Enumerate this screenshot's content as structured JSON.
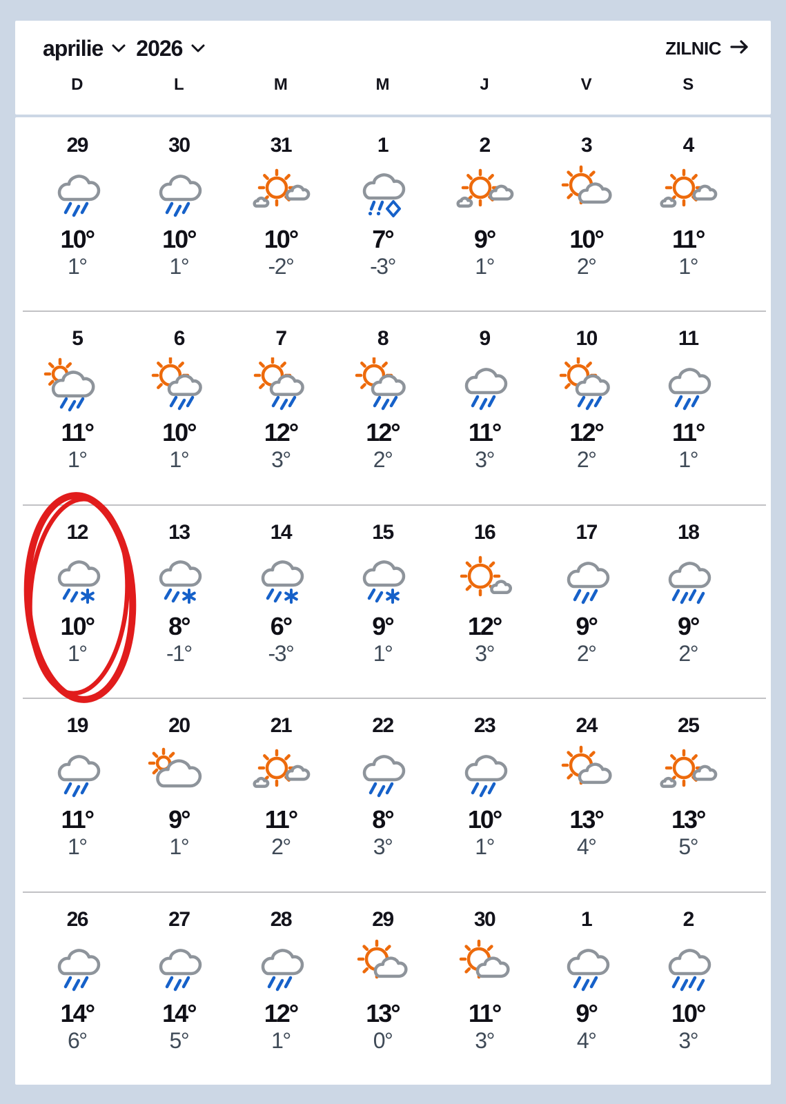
{
  "header": {
    "month_label": "aprilie",
    "year_label": "2026",
    "daily_label": "ZILNIC",
    "month_chevron_icon": "chevron-down",
    "year_chevron_icon": "chevron-down",
    "daily_arrow_icon": "arrow-right"
  },
  "weekday_headers": [
    "D",
    "L",
    "M",
    "M",
    "J",
    "V",
    "S"
  ],
  "colors": {
    "page_background": "#ccd7e5",
    "card_background": "#ffffff",
    "sun": "#ed6a0b",
    "cloud": "#8e949b",
    "rain": "#1661c9",
    "day_number": "#13131b",
    "high_temp": "#0f0f16",
    "low_temp": "#3f4a57",
    "separator": "#c1c1c4",
    "annotation": "#e11c1c"
  },
  "weeks": [
    {
      "days": [
        {
          "date": "29",
          "icon": "rain",
          "high": "10°",
          "low": "1°",
          "outside_month": true,
          "circled": false
        },
        {
          "date": "30",
          "icon": "rain",
          "high": "10°",
          "low": "1°",
          "outside_month": true,
          "circled": false
        },
        {
          "date": "31",
          "icon": "partly-sunny",
          "high": "10°",
          "low": "-2°",
          "outside_month": true,
          "circled": false
        },
        {
          "date": "1",
          "icon": "ice-rain",
          "high": "7°",
          "low": "-3°",
          "outside_month": false,
          "circled": false
        },
        {
          "date": "2",
          "icon": "partly-sunny",
          "high": "9°",
          "low": "1°",
          "outside_month": false,
          "circled": false
        },
        {
          "date": "3",
          "icon": "sun-cloud",
          "high": "10°",
          "low": "2°",
          "outside_month": false,
          "circled": false
        },
        {
          "date": "4",
          "icon": "partly-sunny",
          "high": "11°",
          "low": "1°",
          "outside_month": false,
          "circled": false
        }
      ]
    },
    {
      "days": [
        {
          "date": "5",
          "icon": "cloud-sun-rain",
          "high": "11°",
          "low": "1°",
          "outside_month": false,
          "circled": false
        },
        {
          "date": "6",
          "icon": "sun-cloud-rain",
          "high": "10°",
          "low": "1°",
          "outside_month": false,
          "circled": false
        },
        {
          "date": "7",
          "icon": "sun-cloud-rain",
          "high": "12°",
          "low": "3°",
          "outside_month": false,
          "circled": false
        },
        {
          "date": "8",
          "icon": "sun-cloud-rain",
          "high": "12°",
          "low": "2°",
          "outside_month": false,
          "circled": false
        },
        {
          "date": "9",
          "icon": "rain",
          "high": "11°",
          "low": "3°",
          "outside_month": false,
          "circled": false
        },
        {
          "date": "10",
          "icon": "sun-cloud-rain",
          "high": "12°",
          "low": "2°",
          "outside_month": false,
          "circled": false
        },
        {
          "date": "11",
          "icon": "rain",
          "high": "11°",
          "low": "1°",
          "outside_month": false,
          "circled": false
        }
      ]
    },
    {
      "days": [
        {
          "date": "12",
          "icon": "sleet",
          "high": "10°",
          "low": "1°",
          "outside_month": false,
          "circled": true
        },
        {
          "date": "13",
          "icon": "sleet",
          "high": "8°",
          "low": "-1°",
          "outside_month": false,
          "circled": false
        },
        {
          "date": "14",
          "icon": "sleet",
          "high": "6°",
          "low": "-3°",
          "outside_month": false,
          "circled": false
        },
        {
          "date": "15",
          "icon": "sleet",
          "high": "9°",
          "low": "1°",
          "outside_month": false,
          "circled": false
        },
        {
          "date": "16",
          "icon": "sun-small-cloud",
          "high": "12°",
          "low": "3°",
          "outside_month": false,
          "circled": false
        },
        {
          "date": "17",
          "icon": "rain",
          "high": "9°",
          "low": "2°",
          "outside_month": false,
          "circled": false
        },
        {
          "date": "18",
          "icon": "heavy-rain",
          "high": "9°",
          "low": "2°",
          "outside_month": false,
          "circled": false
        }
      ]
    },
    {
      "days": [
        {
          "date": "19",
          "icon": "rain",
          "high": "11°",
          "low": "1°",
          "outside_month": false,
          "circled": false
        },
        {
          "date": "20",
          "icon": "cloud-sun",
          "high": "9°",
          "low": "1°",
          "outside_month": false,
          "circled": false
        },
        {
          "date": "21",
          "icon": "partly-sunny",
          "high": "11°",
          "low": "2°",
          "outside_month": false,
          "circled": false
        },
        {
          "date": "22",
          "icon": "rain",
          "high": "8°",
          "low": "3°",
          "outside_month": false,
          "circled": false
        },
        {
          "date": "23",
          "icon": "rain",
          "high": "10°",
          "low": "1°",
          "outside_month": false,
          "circled": false
        },
        {
          "date": "24",
          "icon": "sun-cloud",
          "high": "13°",
          "low": "4°",
          "outside_month": false,
          "circled": false
        },
        {
          "date": "25",
          "icon": "partly-sunny",
          "high": "13°",
          "low": "5°",
          "outside_month": false,
          "circled": false
        }
      ]
    },
    {
      "days": [
        {
          "date": "26",
          "icon": "rain",
          "high": "14°",
          "low": "6°",
          "outside_month": false,
          "circled": false
        },
        {
          "date": "27",
          "icon": "rain",
          "high": "14°",
          "low": "5°",
          "outside_month": false,
          "circled": false
        },
        {
          "date": "28",
          "icon": "rain",
          "high": "12°",
          "low": "1°",
          "outside_month": false,
          "circled": false
        },
        {
          "date": "29",
          "icon": "sun-cloud",
          "high": "13°",
          "low": "0°",
          "outside_month": false,
          "circled": false
        },
        {
          "date": "30",
          "icon": "sun-cloud",
          "high": "11°",
          "low": "3°",
          "outside_month": false,
          "circled": false
        },
        {
          "date": "1",
          "icon": "rain",
          "high": "9°",
          "low": "4°",
          "outside_month": true,
          "circled": false
        },
        {
          "date": "2",
          "icon": "heavy-rain",
          "high": "10°",
          "low": "3°",
          "outside_month": true,
          "circled": false
        }
      ]
    }
  ],
  "annotation": {
    "shape": "hand-drawn-ellipse",
    "color": "#e11c1c",
    "circled_date": "12"
  }
}
